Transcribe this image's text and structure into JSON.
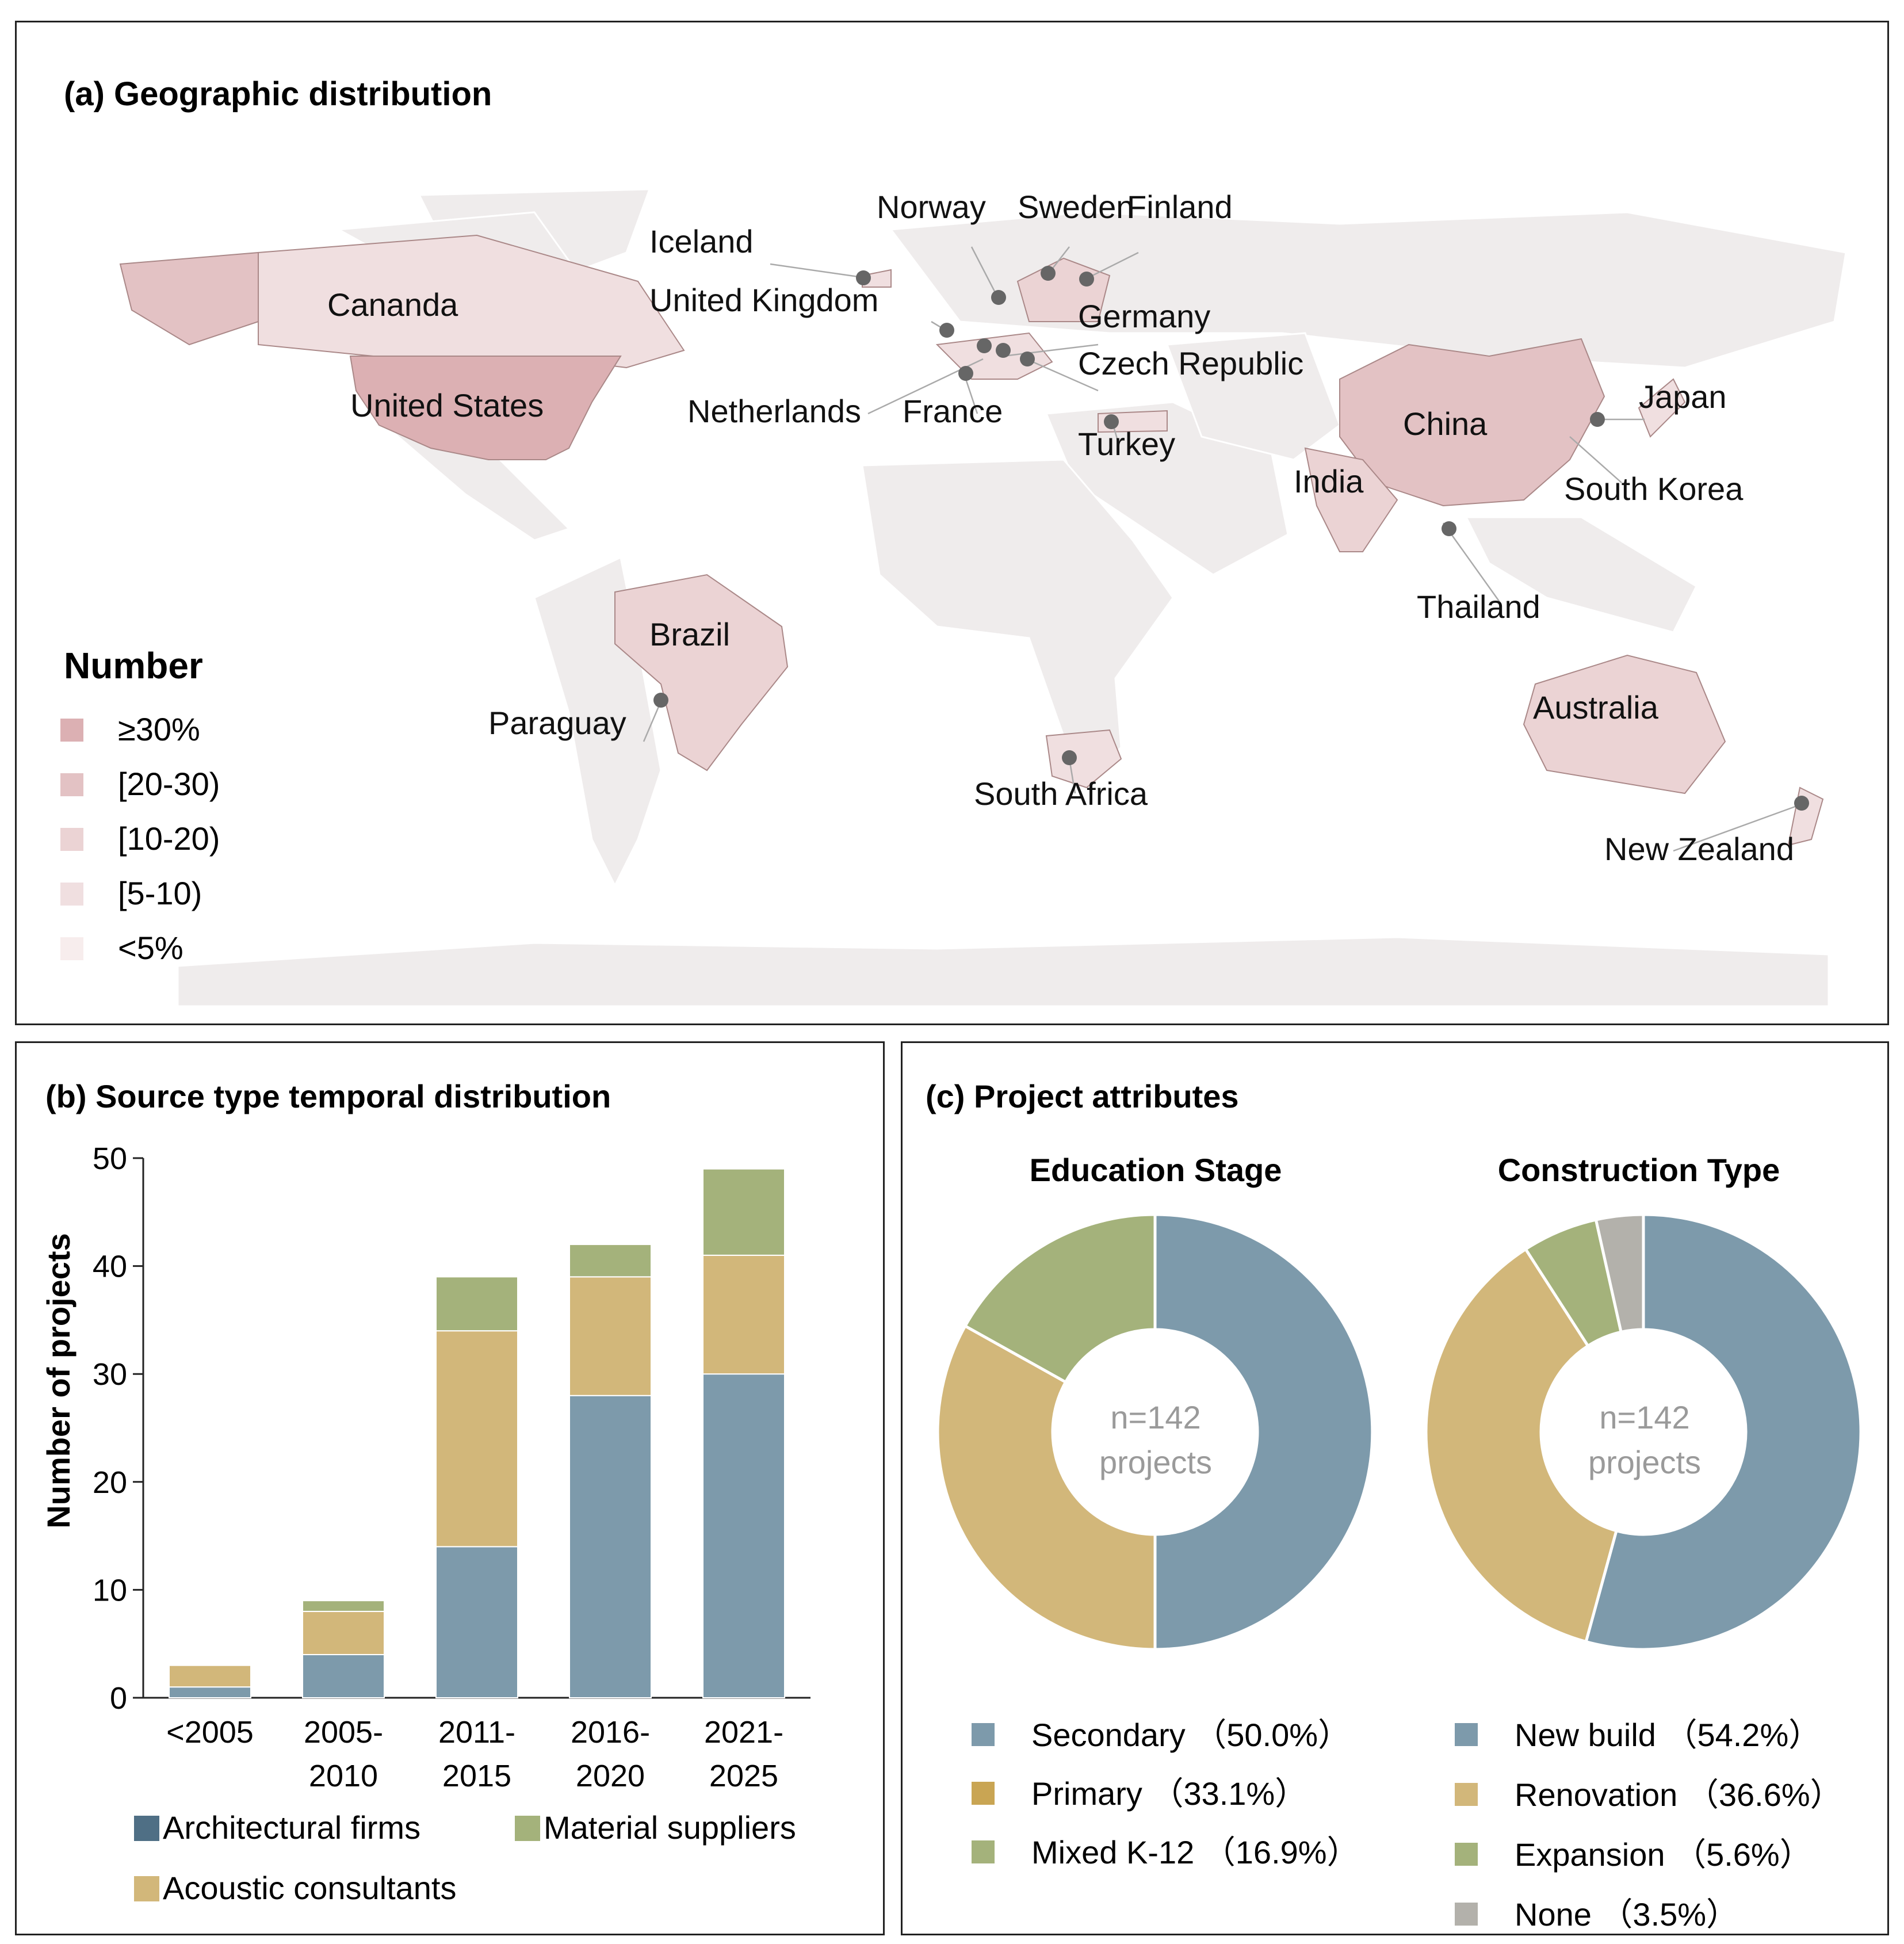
{
  "chart_data": [
    {
      "type": "map",
      "title": "(a) Geographic distribution",
      "legend": {
        "title": "Number",
        "items": [
          {
            "label": "≥30%",
            "color": "#dcb0b3"
          },
          {
            "label": "[20-30)",
            "color": "#e3c2c4"
          },
          {
            "label": "[10-20)",
            "color": "#ebd3d4"
          },
          {
            "label": "[5-10)",
            "color": "#f0dfe0"
          },
          {
            "label": "<5%",
            "color": "#f7eded"
          }
        ]
      },
      "countries": [
        "Cananda",
        "United States",
        "Iceland",
        "United Kingdom",
        "Norway",
        "Sweden",
        "Finland",
        "Germany",
        "Czech Republic",
        "Netherlands",
        "France",
        "Turkey",
        "China",
        "Japan",
        "South Korea",
        "India",
        "Thailand",
        "Brazil",
        "Paraguay",
        "South Africa",
        "Australia",
        "New Zealand"
      ]
    },
    {
      "type": "bar",
      "stacked": true,
      "title": "(b)  Source type temporal distribution",
      "ylabel": "Number of projects",
      "ylim": [
        0,
        50
      ],
      "yticks": [
        "0",
        "10",
        "20",
        "30",
        "40",
        "50"
      ],
      "categories": [
        [
          "<2005"
        ],
        [
          "2005-",
          "2010"
        ],
        [
          "2011-",
          "2015"
        ],
        [
          "2016-",
          "2020"
        ],
        [
          "2021-",
          "2025"
        ]
      ],
      "series": [
        {
          "name": "Architectural firms",
          "color": "#7d9aab",
          "legend_color": "#4f6f85",
          "values": [
            1,
            4,
            14,
            28,
            30
          ]
        },
        {
          "name": "Acoustic consultants",
          "color": "#d2b77a",
          "legend_color": "#d2b77a",
          "values": [
            2,
            4,
            20,
            11,
            11
          ]
        },
        {
          "name": "Material suppliers",
          "color": "#a4b27b",
          "legend_color": "#a4b27b",
          "values": [
            0,
            1,
            5,
            3,
            8
          ]
        }
      ]
    },
    {
      "type": "pie",
      "donut": true,
      "panel_title": "(c)  Project attributes",
      "title": "Education Stage",
      "center_text": [
        "n=142",
        "projects"
      ],
      "slices": [
        {
          "label": "Secondary",
          "value": 50.0,
          "display": "（50.0%）",
          "color": "#7d9aab",
          "legend_color": "#7d9aab"
        },
        {
          "label": "Primary",
          "value": 33.1,
          "display": "（33.1%）",
          "color": "#d2b77a",
          "legend_color": "#c9a553"
        },
        {
          "label": "Mixed K-12",
          "value": 16.9,
          "display": "（16.9%）",
          "color": "#a4b27b",
          "legend_color": "#a4b27b"
        }
      ]
    },
    {
      "type": "pie",
      "donut": true,
      "title": "Construction Type",
      "center_text": [
        "n=142",
        "projects"
      ],
      "slices": [
        {
          "label": "New build",
          "value": 54.2,
          "display": "（54.2%）",
          "color": "#7d9aab",
          "legend_color": "#7d9aab"
        },
        {
          "label": "Renovation",
          "value": 36.6,
          "display": "（36.6%）",
          "color": "#d2b77a",
          "legend_color": "#d2b77a"
        },
        {
          "label": "Expansion",
          "value": 5.6,
          "display": "（5.6%）",
          "color": "#a4b27b",
          "legend_color": "#a4b27b"
        },
        {
          "label": "None",
          "value": 3.5,
          "display": "（3.5%）",
          "color": "#b3b1ab",
          "legend_color": "#b3b1ab"
        }
      ]
    }
  ]
}
